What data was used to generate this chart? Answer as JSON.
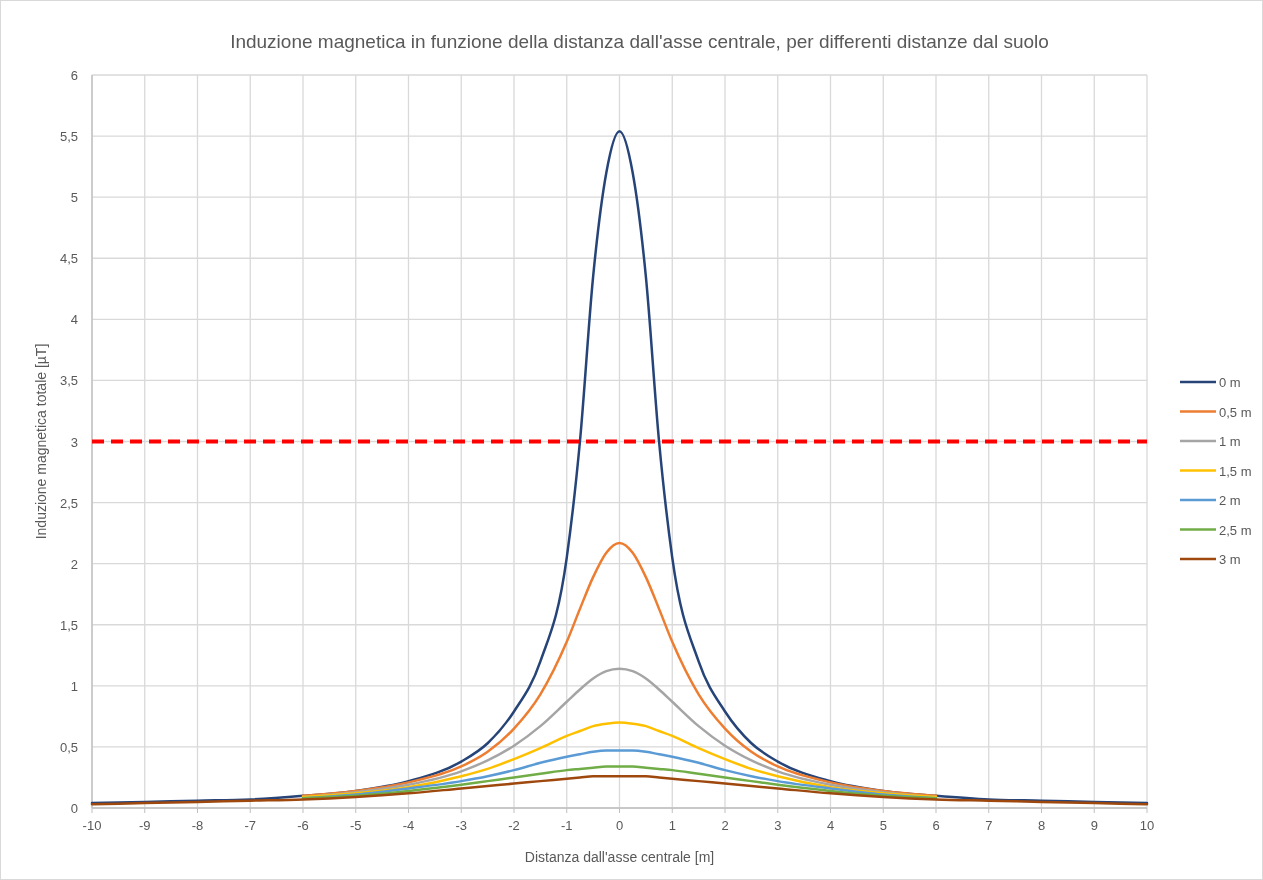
{
  "chart_data": {
    "type": "line",
    "title": "Induzione magnetica  in funzione della distanza dall'asse centrale, per differenti distanze dal suolo",
    "xlabel": "Distanza dall'asse centrale [m]",
    "ylabel": "Induzione magnetica totale [µT]",
    "x": [
      -10,
      -9,
      -8,
      -7,
      -6,
      -5,
      -4,
      -3,
      -2.5,
      -2,
      -1.5,
      -1,
      -0.75,
      -0.5,
      -0.25,
      0,
      0.25,
      0.5,
      0.75,
      1,
      1.5,
      2,
      2.5,
      3,
      4,
      5,
      6,
      7,
      8,
      9,
      10
    ],
    "xlim": [
      -10,
      10
    ],
    "xticks": [
      -10,
      -9,
      -8,
      -7,
      -6,
      -5,
      -4,
      -3,
      -2,
      -1,
      0,
      1,
      2,
      3,
      4,
      5,
      6,
      7,
      8,
      9,
      10
    ],
    "ylim": [
      0,
      6
    ],
    "yticks": [
      0,
      {
        "value": 0.5,
        "label": "0,5"
      },
      1,
      {
        "value": 1.5,
        "label": "1,5"
      },
      2,
      {
        "value": 2.5,
        "label": "2,5"
      },
      3,
      {
        "value": 3.5,
        "label": "3,5"
      },
      4,
      {
        "value": 4.5,
        "label": "4,5"
      },
      5,
      {
        "value": 5.5,
        "label": "5,5"
      },
      6
    ],
    "grid": true,
    "legend": "right",
    "line_style": "solid",
    "marker": "none",
    "ref_lines": [
      {
        "axis": "y",
        "value": 3,
        "color": "#ff0000",
        "line_style": "dashed"
      }
    ],
    "series": [
      {
        "name": "0 m",
        "color": "#264478",
        "values": [
          0.04,
          0.05,
          0.06,
          0.07,
          0.1,
          0.14,
          0.22,
          0.38,
          0.53,
          0.79,
          1.2,
          2.05,
          3.0,
          4.35,
          5.2,
          5.54,
          5.2,
          4.35,
          3.0,
          2.05,
          1.2,
          0.79,
          0.53,
          0.38,
          0.22,
          0.14,
          0.1,
          0.07,
          0.06,
          0.05,
          0.04
        ]
      },
      {
        "name": "0,5 m",
        "color": "#ed7d31",
        "values": [
          null,
          null,
          null,
          null,
          0.1,
          0.14,
          0.21,
          0.34,
          0.46,
          0.65,
          0.93,
          1.36,
          1.63,
          1.89,
          2.09,
          2.17,
          2.09,
          1.89,
          1.63,
          1.36,
          0.93,
          0.65,
          0.46,
          0.34,
          0.21,
          0.14,
          0.1,
          null,
          null,
          null,
          null
        ]
      },
      {
        "name": "1 m",
        "color": "#a5a5a5",
        "values": [
          null,
          null,
          null,
          null,
          0.09,
          0.13,
          0.19,
          0.3,
          0.39,
          0.51,
          0.67,
          0.87,
          0.97,
          1.06,
          1.12,
          1.14,
          1.12,
          1.06,
          0.97,
          0.87,
          0.67,
          0.51,
          0.39,
          0.3,
          0.19,
          0.13,
          0.09,
          null,
          null,
          null,
          null
        ]
      },
      {
        "name": "1,5 m",
        "color": "#ffc000",
        "values": [
          null,
          null,
          null,
          null,
          0.09,
          0.12,
          0.17,
          0.26,
          0.32,
          0.4,
          0.49,
          0.59,
          0.63,
          0.67,
          0.69,
          0.7,
          0.69,
          0.67,
          0.63,
          0.59,
          0.49,
          0.4,
          0.32,
          0.26,
          0.17,
          0.12,
          0.09,
          null,
          null,
          null,
          null
        ]
      },
      {
        "name": "2 m",
        "color": "#5b9bd5",
        "values": [
          null,
          null,
          null,
          null,
          0.08,
          0.11,
          0.16,
          0.22,
          0.26,
          0.31,
          0.37,
          0.42,
          0.44,
          0.46,
          0.47,
          0.47,
          0.47,
          0.46,
          0.44,
          0.42,
          0.37,
          0.31,
          0.26,
          0.22,
          0.16,
          0.11,
          0.08,
          null,
          null,
          null,
          null
        ]
      },
      {
        "name": "2,5 m",
        "color": "#70ad47",
        "values": [
          null,
          null,
          null,
          null,
          0.08,
          0.1,
          0.14,
          0.19,
          0.22,
          0.25,
          0.28,
          0.31,
          0.32,
          0.33,
          0.34,
          0.34,
          0.34,
          0.33,
          0.32,
          0.31,
          0.28,
          0.25,
          0.22,
          0.19,
          0.14,
          0.1,
          0.08,
          null,
          null,
          null,
          null
        ]
      },
      {
        "name": "3 m",
        "color": "#9e480e",
        "values": [
          0.03,
          0.04,
          0.05,
          0.06,
          0.07,
          0.09,
          0.12,
          0.16,
          0.18,
          0.2,
          0.22,
          0.24,
          0.25,
          0.26,
          0.26,
          0.26,
          0.26,
          0.26,
          0.25,
          0.24,
          0.22,
          0.2,
          0.18,
          0.16,
          0.12,
          0.09,
          0.07,
          0.06,
          0.05,
          0.04,
          0.03
        ]
      }
    ]
  }
}
